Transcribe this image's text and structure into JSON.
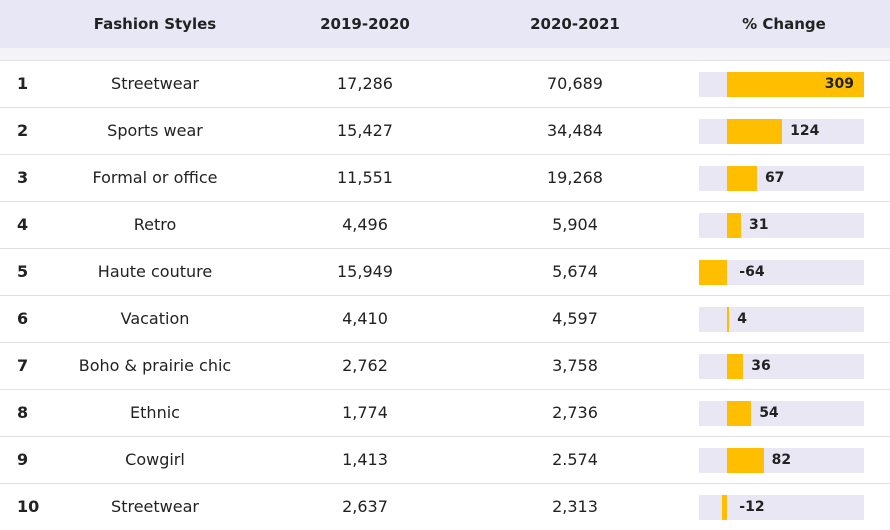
{
  "header": {
    "rank": "",
    "style": "Fashion Styles",
    "col1": "2019-2020",
    "col2": "2020-2021",
    "change": "% Change"
  },
  "colors": {
    "bar": "#ffbf00",
    "track": "#e8e7f3",
    "header_bg": "#e8e7f5"
  },
  "rows": [
    {
      "rank": "1",
      "style": "Streetwear",
      "v1": "17,286",
      "v2": "70,689",
      "change": "309"
    },
    {
      "rank": "2",
      "style": "Sports wear",
      "v1": "15,427",
      "v2": "34,484",
      "change": "124"
    },
    {
      "rank": "3",
      "style": "Formal or office",
      "v1": "11,551",
      "v2": "19,268",
      "change": "67"
    },
    {
      "rank": "4",
      "style": "Retro",
      "v1": "4,496",
      "v2": "5,904",
      "change": "31"
    },
    {
      "rank": "5",
      "style": "Haute couture",
      "v1": "15,949",
      "v2": "5,674",
      "change": "-64"
    },
    {
      "rank": "6",
      "style": "Vacation",
      "v1": "4,410",
      "v2": "4,597",
      "change": "4"
    },
    {
      "rank": "7",
      "style": "Boho & prairie chic",
      "v1": "2,762",
      "v2": "3,758",
      "change": "36"
    },
    {
      "rank": "8",
      "style": "Ethnic",
      "v1": "1,774",
      "v2": "2,736",
      "change": "54"
    },
    {
      "rank": "9",
      "style": "Cowgirl",
      "v1": "1,413",
      "v2": "2.574",
      "change": "82"
    },
    {
      "rank": "10",
      "style": "Streetwear",
      "v1": "2,637",
      "v2": "2,313",
      "change": "-12"
    }
  ],
  "chart_data": {
    "type": "table",
    "columns": [
      "",
      "Fashion Styles",
      "2019-2020",
      "2020-2021",
      "% Change"
    ],
    "change_axis": [
      -64,
      309
    ],
    "change_values": [
      309,
      124,
      67,
      31,
      -64,
      4,
      36,
      54,
      82,
      -12
    ]
  }
}
